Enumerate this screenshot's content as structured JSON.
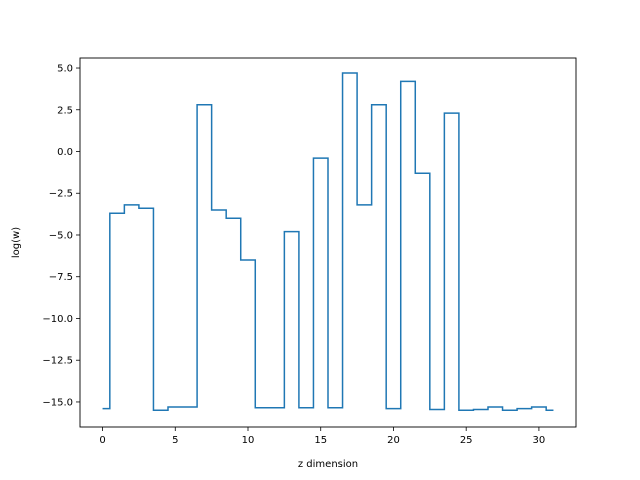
{
  "chart_data": {
    "type": "line",
    "drawstyle": "steps-mid",
    "xlabel": "z dimension",
    "ylabel": "log(w)",
    "xlim": [
      -1.55,
      32.55
    ],
    "ylim": [
      -16.5,
      5.6
    ],
    "xticks": [
      0,
      5,
      10,
      15,
      20,
      25,
      30
    ],
    "yticks": [
      5.0,
      2.5,
      0.0,
      -2.5,
      -5.0,
      -7.5,
      -10.0,
      -12.5,
      -15.0
    ],
    "xtick_labels": [
      "0",
      "5",
      "10",
      "15",
      "20",
      "25",
      "30"
    ],
    "ytick_labels": [
      "5.0",
      "2.5",
      "0.0",
      "−2.5",
      "−5.0",
      "−7.5",
      "−10.0",
      "−12.5",
      "−15.0"
    ],
    "grid": false,
    "series": [
      {
        "color": "#1f77b4",
        "x": [
          0,
          1,
          2,
          3,
          4,
          5,
          6,
          7,
          8,
          9,
          10,
          11,
          12,
          13,
          14,
          15,
          16,
          17,
          18,
          19,
          20,
          21,
          22,
          23,
          24,
          25,
          26,
          27,
          28,
          29,
          30,
          31
        ],
        "y": [
          -15.4,
          -3.7,
          -3.2,
          -3.4,
          -15.5,
          -15.3,
          -15.3,
          2.8,
          -3.5,
          -4.0,
          -6.5,
          -15.35,
          -15.35,
          -4.8,
          -15.35,
          -0.4,
          -15.35,
          4.7,
          -3.2,
          2.8,
          -15.4,
          4.2,
          -1.3,
          -15.45,
          2.3,
          -15.5,
          -15.45,
          -15.3,
          -15.5,
          -15.4,
          -15.3,
          -15.5
        ]
      }
    ]
  }
}
